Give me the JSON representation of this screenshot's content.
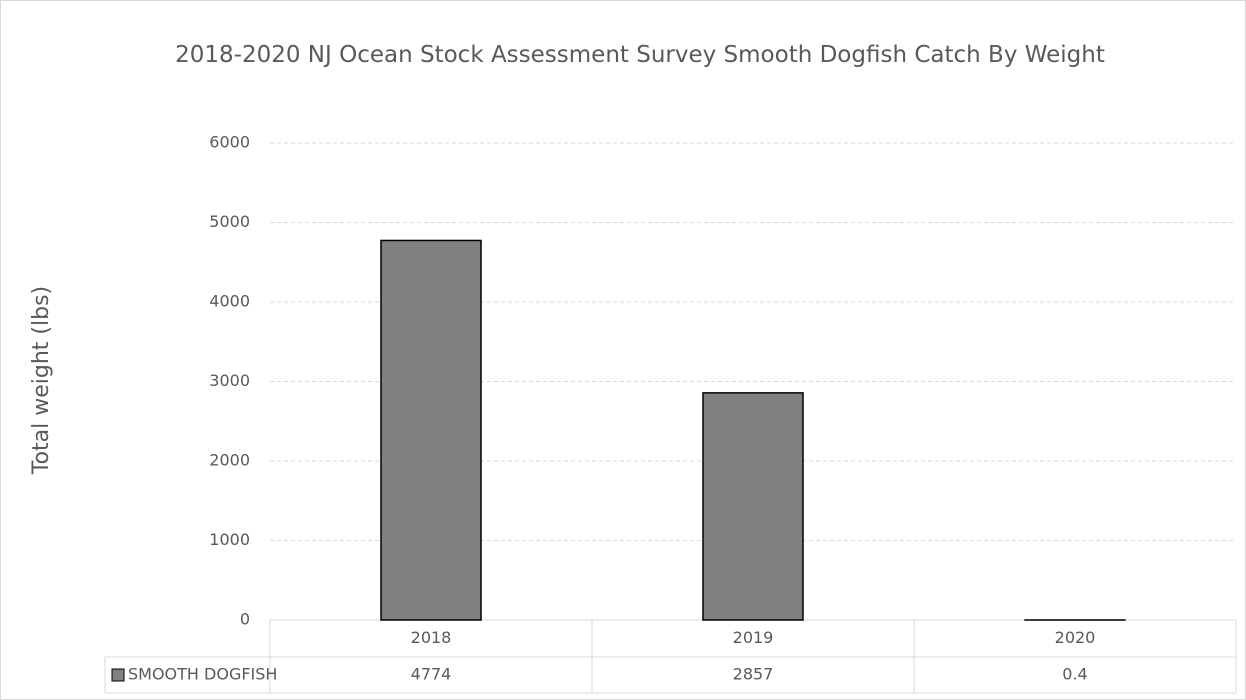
{
  "chart_data": {
    "type": "bar",
    "title": "2018-2020 NJ Ocean Stock Assessment Survey Smooth Dogfish Catch By Weight",
    "y_label": "Total weight (lbs)",
    "categories": [
      "2018",
      "2019",
      "2020"
    ],
    "series": [
      {
        "name": "SMOOTH DOGFISH",
        "color": "#808080",
        "values": [
          4774,
          2857,
          0.4
        ]
      }
    ],
    "ylim": [
      0,
      6000
    ],
    "yticks": [
      0,
      1000,
      2000,
      3000,
      4000,
      5000,
      6000
    ],
    "grid": true
  }
}
